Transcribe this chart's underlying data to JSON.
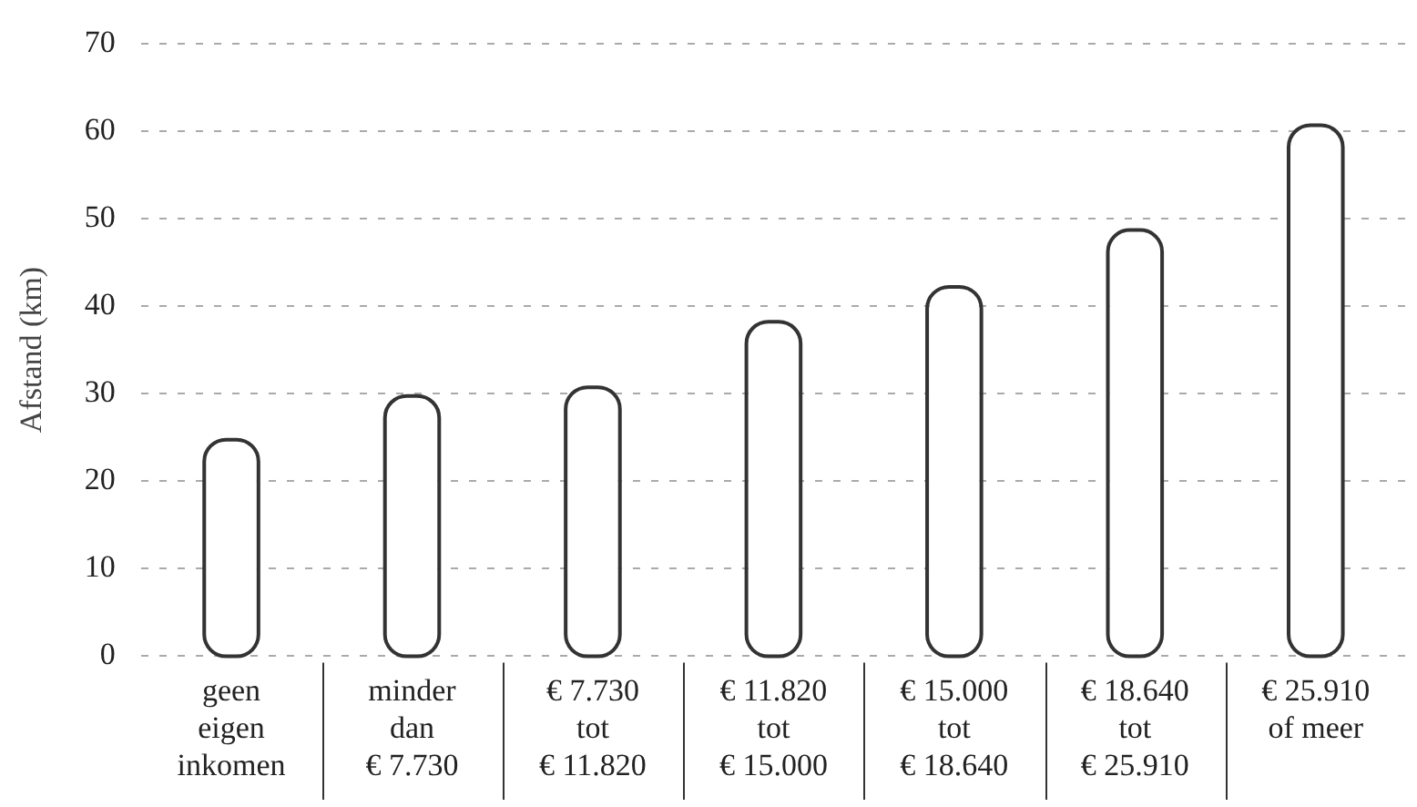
{
  "chart_data": {
    "type": "bar",
    "ylabel": "Afstand (km)",
    "categories": [
      "geen\neigen\ninkomen",
      "minder\ndan\n€ 7.730",
      "€ 7.730\ntot\n€ 11.820",
      "€ 11.820\ntot\n€ 15.000",
      "€ 15.000\ntot\n€ 18.640",
      "€ 18.640\ntot\n€ 25.910",
      "€ 25.910\nof meer"
    ],
    "values": [
      24.5,
      29.5,
      30.5,
      38,
      42,
      48.5,
      60.5
    ],
    "color": "#ffffff",
    "ylim": [
      0,
      70
    ],
    "yticks": [
      0,
      10,
      20,
      30,
      40,
      50,
      60,
      70
    ],
    "grid": "y"
  }
}
